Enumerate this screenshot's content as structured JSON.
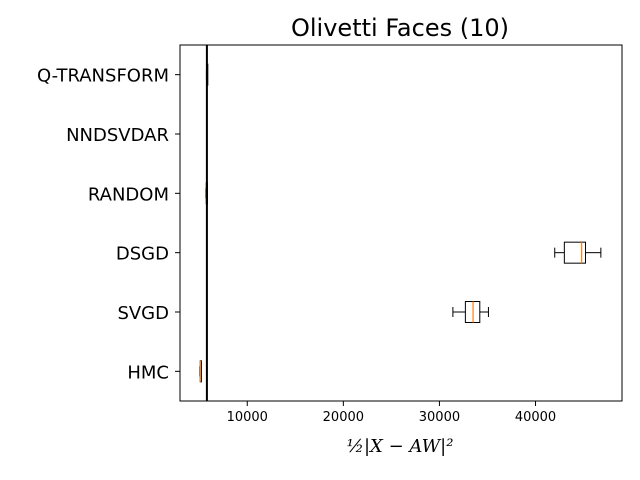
{
  "chart_data": {
    "type": "boxplot",
    "orientation": "horizontal",
    "title": "Olivetti Faces (10)",
    "xlabel": "½|X − AW|²",
    "xlim": [
      3000,
      49000
    ],
    "xticks": [
      10000,
      20000,
      30000,
      40000
    ],
    "tick_labels": [
      "10000",
      "20000",
      "30000",
      "40000"
    ],
    "reference_line_x": 5800,
    "categories": [
      "Q-TRANSFORM",
      "NNDSVDAR",
      "RANDOM",
      "DSGD",
      "SVGD",
      "HMC"
    ],
    "boxes": [
      {
        "name": "Q-TRANSFORM",
        "whisker_low": 5750,
        "q1": 5770,
        "median": 5790,
        "q3": 5820,
        "whisker_high": 5850
      },
      {
        "name": "NNDSVDAR",
        "whisker_low": 5800,
        "q1": 5800,
        "median": 5800,
        "q3": 5800,
        "whisker_high": 5800
      },
      {
        "name": "RANDOM",
        "whisker_low": 5700,
        "q1": 5730,
        "median": 5760,
        "q3": 5790,
        "whisker_high": 5810
      },
      {
        "name": "DSGD",
        "whisker_low": 42000,
        "q1": 43000,
        "median": 44800,
        "q3": 45200,
        "whisker_high": 46800
      },
      {
        "name": "SVGD",
        "whisker_low": 31400,
        "q1": 32700,
        "median": 33500,
        "q3": 34200,
        "whisker_high": 35100
      },
      {
        "name": "HMC",
        "whisker_low": 5080,
        "q1": 5110,
        "median": 5140,
        "q3": 5170,
        "whisker_high": 5200
      }
    ],
    "colors": {
      "box": "#000000",
      "median": "#ff7f0e",
      "reference_line": "#000000"
    },
    "grid": false,
    "legend": "none"
  }
}
